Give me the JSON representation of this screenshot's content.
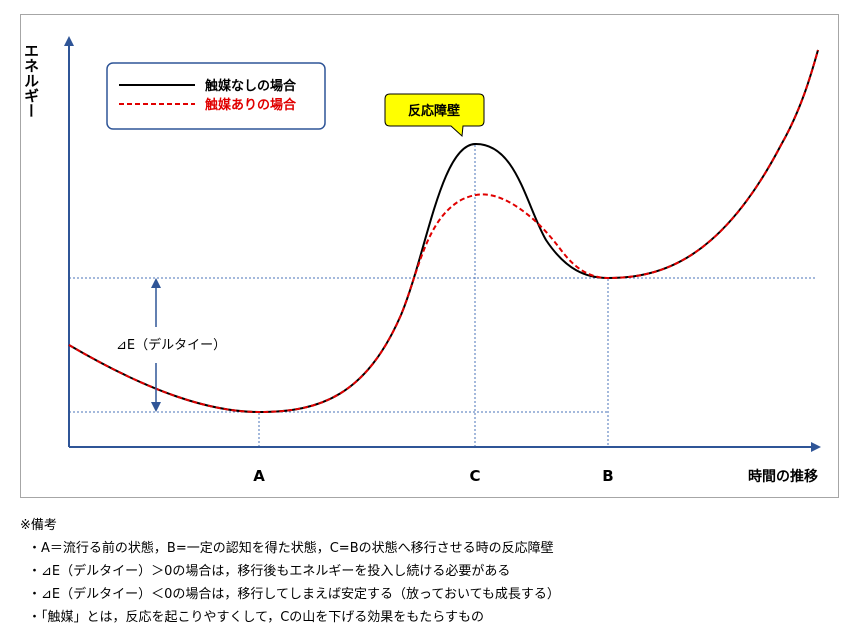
{
  "diagram": {
    "y_axis_label": "エネルギー",
    "x_axis_label": "時間の推移",
    "legend": {
      "no_catalyst": "触媒なしの場合",
      "with_catalyst": "触媒ありの場合"
    },
    "callout": "反応障壁",
    "delta_label": "⊿E（デルタイー）",
    "points": {
      "a": "A",
      "c": "C",
      "b": "B"
    },
    "colors": {
      "no_catalyst": "#000000",
      "with_catalyst": "#e00000",
      "guides": "#4a73b8",
      "arrow": "#2f5597",
      "callout_fill": "#ffff00",
      "legend_border": "#2f5597"
    }
  },
  "notes": {
    "title": "※備考",
    "items": [
      "A＝流行る前の状態，B=一定の認知を得た状態，C=Bの状態へ移行させる時の反応障壁",
      "⊿E（デルタイー）＞0の場合は，移行後もエネルギーを投入し続ける必要がある",
      "⊿E（デルタイー）＜0の場合は，移行してしまえば安定する（放っておいても成長する）",
      "「触媒」とは，反応を起こりやすくして，Cの山を下げる効果をもたらすもの"
    ]
  }
}
